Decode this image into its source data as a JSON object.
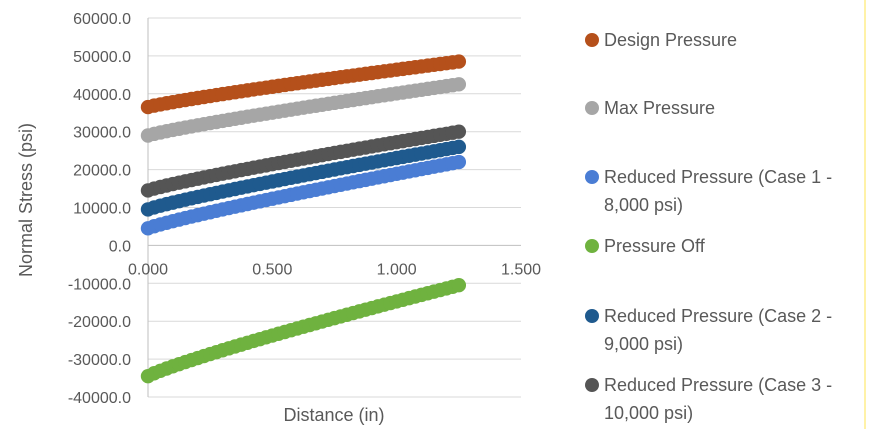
{
  "chart_data": {
    "type": "scatter",
    "title": "",
    "xlabel": "Distance (in)",
    "ylabel": "Normal Stress (psi)",
    "xlim": [
      0,
      1.5
    ],
    "ylim": [
      -40000,
      60000
    ],
    "x_ticks": [
      "0.000",
      "0.500",
      "1.000",
      "1.500"
    ],
    "y_ticks": [
      "60000.0",
      "50000.0",
      "40000.0",
      "30000.0",
      "20000.0",
      "10000.0",
      "0.0",
      "-10000.0",
      "-20000.0",
      "-30000.0",
      "-40000.0"
    ],
    "grid": "horizontal",
    "legend_position": "right",
    "x_range": [
      0,
      1.25
    ],
    "point_spacing": 0.025,
    "series": [
      {
        "name": "Design Pressure",
        "color": "#b5501b",
        "y_start": 36500,
        "y_end": 48500
      },
      {
        "name": "Max Pressure",
        "color": "#a6a6a6",
        "y_start": 29000,
        "y_end": 42500
      },
      {
        "name": "Reduced Pressure (Case 1 - 8,000 psi)",
        "color": "#4a7dd4",
        "y_start": 4500,
        "y_end": 22000
      },
      {
        "name": "Pressure Off",
        "color": "#6fb23f",
        "y_start": -34500,
        "y_end": -10500
      },
      {
        "name": "Reduced Pressure (Case 2 - 9,000 psi)",
        "color": "#1f5a8e",
        "y_start": 9500,
        "y_end": 26000
      },
      {
        "name": "Reduced Pressure (Case 3 - 10,000 psi)",
        "color": "#555555",
        "y_start": 14500,
        "y_end": 30000
      }
    ]
  }
}
